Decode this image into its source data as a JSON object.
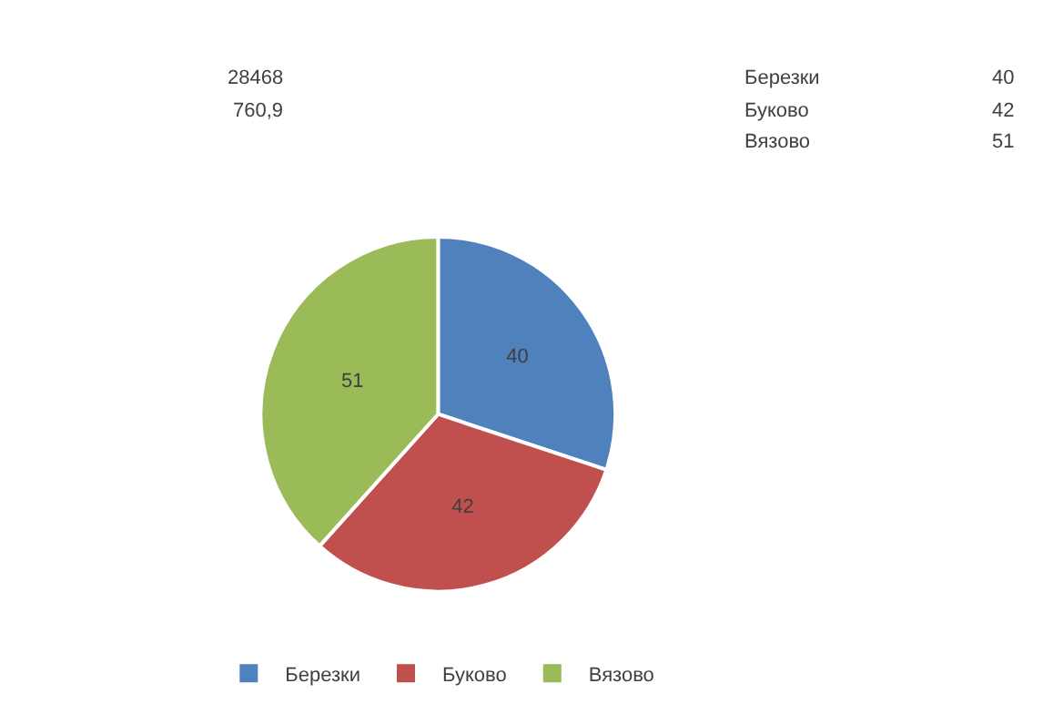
{
  "chart_data": {
    "type": "pie",
    "categories": [
      "Березки",
      "Буково",
      "Вязово"
    ],
    "values": [
      40,
      42,
      51
    ],
    "colors": [
      "#4f81bd",
      "#c0504d",
      "#9bbb59"
    ],
    "data_labels": true,
    "legend": "bottom",
    "annotations": [
      "28468",
      "760,9",
      "Березки",
      "40",
      "Буково",
      "42",
      "Вязово",
      "51"
    ]
  }
}
